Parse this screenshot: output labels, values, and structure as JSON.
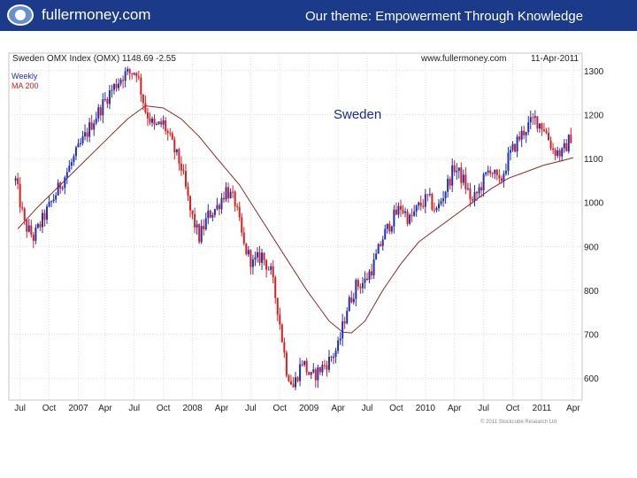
{
  "header": {
    "site_name": "fullermoney.com",
    "theme": "Our theme: Empowerment Through Knowledge"
  },
  "chart_data": {
    "type": "candlestick",
    "title": "Sweden OMX Index (OMX) 1148.69 -2.55",
    "source": "www.fullermoney.com",
    "date": "11-Apr-2011",
    "annotation": "Sweden",
    "legend": [
      "Weekly",
      "MA 200"
    ],
    "copyright": "© 2011 Stockcube Research Ltd",
    "ylim": [
      550,
      1340
    ],
    "yticks": [
      600,
      700,
      800,
      900,
      1000,
      1100,
      1200,
      1300
    ],
    "ytick_labels": [
      "600",
      "700",
      "800",
      "900",
      "1000",
      "1100",
      "1200",
      "1300"
    ],
    "xticks": [
      {
        "label": "Jul",
        "t": 2
      },
      {
        "label": "Oct",
        "t": 15
      },
      {
        "label": "2007",
        "t": 28
      },
      {
        "label": "Apr",
        "t": 40
      },
      {
        "label": "Jul",
        "t": 53
      },
      {
        "label": "Oct",
        "t": 66
      },
      {
        "label": "2008",
        "t": 79
      },
      {
        "label": "Apr",
        "t": 92
      },
      {
        "label": "Jul",
        "t": 105
      },
      {
        "label": "Oct",
        "t": 118
      },
      {
        "label": "2009",
        "t": 131
      },
      {
        "label": "Apr",
        "t": 144
      },
      {
        "label": "Jul",
        "t": 157
      },
      {
        "label": "Oct",
        "t": 170
      },
      {
        "label": "2010",
        "t": 183
      },
      {
        "label": "Apr",
        "t": 196
      },
      {
        "label": "Jul",
        "t": 209
      },
      {
        "label": "Oct",
        "t": 222
      },
      {
        "label": "2011",
        "t": 235
      },
      {
        "label": "Apr",
        "t": 249
      }
    ],
    "t_range": [
      -3,
      253
    ],
    "price_anchors": [
      [
        0,
        1050
      ],
      [
        4,
        950
      ],
      [
        8,
        920
      ],
      [
        14,
        980
      ],
      [
        20,
        1040
      ],
      [
        28,
        1120
      ],
      [
        34,
        1180
      ],
      [
        42,
        1250
      ],
      [
        48,
        1290
      ],
      [
        54,
        1300
      ],
      [
        58,
        1210
      ],
      [
        62,
        1170
      ],
      [
        66,
        1180
      ],
      [
        70,
        1130
      ],
      [
        74,
        1080
      ],
      [
        78,
        980
      ],
      [
        82,
        920
      ],
      [
        86,
        970
      ],
      [
        90,
        990
      ],
      [
        94,
        1030
      ],
      [
        98,
        1000
      ],
      [
        102,
        900
      ],
      [
        106,
        860
      ],
      [
        110,
        880
      ],
      [
        114,
        840
      ],
      [
        117,
        760
      ],
      [
        121,
        620
      ],
      [
        124,
        580
      ],
      [
        128,
        640
      ],
      [
        132,
        600
      ],
      [
        136,
        620
      ],
      [
        140,
        640
      ],
      [
        144,
        670
      ],
      [
        148,
        760
      ],
      [
        152,
        810
      ],
      [
        156,
        820
      ],
      [
        160,
        860
      ],
      [
        164,
        920
      ],
      [
        168,
        960
      ],
      [
        172,
        990
      ],
      [
        176,
        960
      ],
      [
        180,
        990
      ],
      [
        184,
        1010
      ],
      [
        188,
        980
      ],
      [
        192,
        1030
      ],
      [
        196,
        1080
      ],
      [
        200,
        1050
      ],
      [
        204,
        1000
      ],
      [
        208,
        1040
      ],
      [
        212,
        1080
      ],
      [
        216,
        1040
      ],
      [
        220,
        1100
      ],
      [
        224,
        1140
      ],
      [
        228,
        1170
      ],
      [
        232,
        1190
      ],
      [
        236,
        1170
      ],
      [
        240,
        1120
      ],
      [
        244,
        1110
      ],
      [
        248,
        1150
      ]
    ],
    "ma200_anchors": [
      [
        1,
        940
      ],
      [
        10,
        990
      ],
      [
        20,
        1040
      ],
      [
        30,
        1090
      ],
      [
        40,
        1140
      ],
      [
        50,
        1190
      ],
      [
        58,
        1220
      ],
      [
        66,
        1215
      ],
      [
        74,
        1190
      ],
      [
        82,
        1150
      ],
      [
        90,
        1100
      ],
      [
        100,
        1040
      ],
      [
        110,
        960
      ],
      [
        120,
        880
      ],
      [
        130,
        800
      ],
      [
        140,
        730
      ],
      [
        146,
        705
      ],
      [
        150,
        703
      ],
      [
        156,
        730
      ],
      [
        164,
        800
      ],
      [
        172,
        860
      ],
      [
        180,
        910
      ],
      [
        188,
        940
      ],
      [
        196,
        970
      ],
      [
        204,
        1000
      ],
      [
        212,
        1030
      ],
      [
        220,
        1055
      ],
      [
        228,
        1070
      ],
      [
        236,
        1085
      ],
      [
        244,
        1095
      ],
      [
        249,
        1102
      ]
    ],
    "up_color": "#1f2fb8",
    "down_color": "#d81e1e",
    "ma_color": "#8b2a2a",
    "grid": true
  }
}
